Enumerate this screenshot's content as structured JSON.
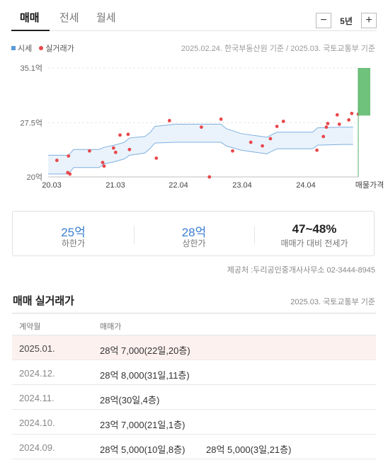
{
  "tabs": [
    {
      "label": "매매"
    },
    {
      "label": "전세"
    },
    {
      "label": "월세"
    }
  ],
  "period": {
    "minus": "−",
    "label": "5년",
    "plus": "+"
  },
  "legend": {
    "market": "시세",
    "actual": "실거래가"
  },
  "chart_source": "2025.02.24. 한국부동산원 기준 / 2025.03. 국토교통부 기준",
  "chart_data": {
    "type": "line",
    "ylabels": [
      "35.1억",
      "27.5억",
      "20억"
    ],
    "xlabels": [
      "20.03",
      "21.03",
      "22.04",
      "23.04",
      "24.04"
    ],
    "listing_label": "매물가격",
    "y_range": [
      20,
      35.1
    ],
    "x_range": [
      "2020-02",
      "2025-03"
    ],
    "market_low_curve": [
      [
        "2020-02",
        20.4
      ],
      [
        "2020-06",
        20.4
      ],
      [
        "2020-07",
        21.3
      ],
      [
        "2020-12",
        21.3
      ],
      [
        "2021-01",
        21.8
      ],
      [
        "2021-03",
        22.1
      ],
      [
        "2021-05",
        22.5
      ],
      [
        "2021-06",
        23.0
      ],
      [
        "2021-09",
        23.3
      ],
      [
        "2021-10",
        23.9
      ],
      [
        "2021-11",
        24.7
      ],
      [
        "2022-03",
        24.8
      ],
      [
        "2022-06",
        24.8
      ],
      [
        "2022-08",
        24.8
      ],
      [
        "2022-12",
        24.8
      ],
      [
        "2023-01",
        24.3
      ],
      [
        "2023-04",
        23.7
      ],
      [
        "2023-07",
        23.4
      ],
      [
        "2023-09",
        23.2
      ],
      [
        "2023-11",
        23.9
      ],
      [
        "2024-06",
        23.9
      ],
      [
        "2024-07",
        24.4
      ],
      [
        "2024-12",
        24.5
      ],
      [
        "2025-02",
        24.5
      ]
    ],
    "market_high_curve": [
      [
        "2020-02",
        23.0
      ],
      [
        "2020-06",
        23.0
      ],
      [
        "2020-07",
        23.8
      ],
      [
        "2020-12",
        23.8
      ],
      [
        "2021-01",
        24.1
      ],
      [
        "2021-03",
        24.4
      ],
      [
        "2021-05",
        24.8
      ],
      [
        "2021-06",
        25.4
      ],
      [
        "2021-09",
        25.6
      ],
      [
        "2021-10",
        26.1
      ],
      [
        "2021-11",
        27.0
      ],
      [
        "2022-03",
        27.3
      ],
      [
        "2022-06",
        27.3
      ],
      [
        "2022-08",
        27.3
      ],
      [
        "2022-12",
        27.3
      ],
      [
        "2023-01",
        26.7
      ],
      [
        "2023-04",
        26.0
      ],
      [
        "2023-07",
        25.7
      ],
      [
        "2023-09",
        25.5
      ],
      [
        "2023-11",
        26.2
      ],
      [
        "2024-06",
        26.2
      ],
      [
        "2024-07",
        26.8
      ],
      [
        "2024-12",
        26.9
      ],
      [
        "2025-02",
        26.9
      ]
    ],
    "actual_transactions": [
      [
        "2020-04",
        22.3
      ],
      [
        "2020-06",
        22.9
      ],
      [
        "2020-06",
        20.4
      ],
      [
        "2020-06",
        20.6
      ],
      [
        "2020-10",
        23.6
      ],
      [
        "2021-01",
        22.0
      ],
      [
        "2021-01",
        21.5
      ],
      [
        "2021-03",
        23.4
      ],
      [
        "2021-03",
        24.0
      ],
      [
        "2021-04",
        25.8
      ],
      [
        "2021-06",
        25.9
      ],
      [
        "2021-06",
        23.8
      ],
      [
        "2021-11",
        22.6
      ],
      [
        "2022-02",
        27.8
      ],
      [
        "2022-08",
        26.9
      ],
      [
        "2022-10",
        20.0
      ],
      [
        "2022-12",
        28.0
      ],
      [
        "2023-02",
        23.6
      ],
      [
        "2023-06",
        24.8
      ],
      [
        "2023-08",
        24.3
      ],
      [
        "2023-10",
        25.3
      ],
      [
        "2023-11",
        27.0
      ],
      [
        "2023-12",
        27.7
      ],
      [
        "2024-07",
        23.7
      ],
      [
        "2024-08",
        25.6
      ],
      [
        "2024-09",
        26.9
      ],
      [
        "2024-09",
        27.4
      ],
      [
        "2024-11",
        27.3
      ],
      [
        "2024-11",
        28.6
      ],
      [
        "2025-01",
        27.9
      ],
      [
        "2025-02",
        28.8
      ],
      [
        "2025-03",
        28.7
      ]
    ],
    "listing_range": [
      28.5,
      35.1
    ],
    "colors": {
      "band": "#eaf3fb",
      "line": "#7fb0e0",
      "dot": "#e8484c",
      "listing": "#6fc27c",
      "listing_line": "#55b065"
    }
  },
  "stats": {
    "low": {
      "value": "25억",
      "label": "하한가"
    },
    "high": {
      "value": "28억",
      "label": "상한가"
    },
    "ratio": {
      "value": "47~48%",
      "label": "매매가 대비 전세가"
    }
  },
  "provider": "제공처 :두리공인중개사사무소 02-3444-8945",
  "transactions": {
    "title": "매매 실거래가",
    "date": "2025.03. 국토교통부 기준",
    "col_date": "계약월",
    "col_price": "매매가",
    "rows": [
      {
        "date": "2025.01.",
        "price": "28억 7,000(22일,20층)",
        "price2": ""
      },
      {
        "date": "2024.12.",
        "price": "28억 8,000(31일,11층)",
        "price2": ""
      },
      {
        "date": "2024.11.",
        "price": "28억(30일,4층)",
        "price2": ""
      },
      {
        "date": "2024.10.",
        "price": "23억 7,000(21일,1층)",
        "price2": ""
      },
      {
        "date": "2024.09.",
        "price": "28억 5,000(10일,8층)",
        "price2": "28억 5,000(3일,21층)"
      }
    ]
  }
}
